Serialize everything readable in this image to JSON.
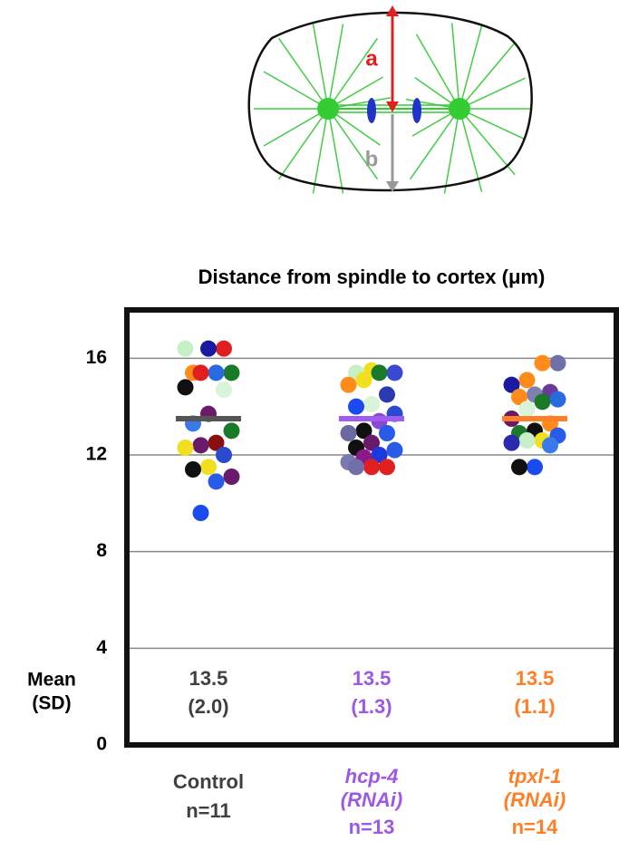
{
  "diagram": {
    "labels": [
      "a",
      "b"
    ]
  },
  "chart_data": {
    "type": "strip",
    "title": "Distance from spindle to cortex (μm)",
    "categories": [
      "Control",
      "hcp-4 (RNAi)",
      "tpxl-1 (RNAi)"
    ],
    "n_labels": [
      "n=11",
      "n=13",
      "n=14"
    ],
    "category_colors": [
      "#404040",
      "#9b59e6",
      "#ff7f27"
    ],
    "ylim": [
      0,
      18
    ],
    "yticks": [
      0,
      4,
      8,
      12,
      16
    ],
    "grid": true,
    "mean_row_label": [
      "Mean",
      "(SD)"
    ],
    "means": [
      13.5,
      13.5,
      13.5
    ],
    "mean_colors": [
      "#555555",
      "#a05cf0",
      "#ff7f27"
    ],
    "sd": [
      2.0,
      1.3,
      1.1
    ],
    "sd_labels": [
      "(2.0)",
      "(1.3)",
      "(1.1)"
    ],
    "groups": [
      {
        "values": [
          16.4,
          16.4,
          16.4,
          15.4,
          15.4,
          15.4,
          15.4,
          14.8,
          14.7,
          13.7,
          13.3,
          13.0,
          12.5,
          12.4,
          12.3,
          12.0,
          11.5,
          11.4,
          11.1,
          10.9,
          9.6
        ],
        "colors": [
          "#c8f0c8",
          "#e02020",
          "#1a1aa0",
          "#ff8c1a",
          "#1a7a2a",
          "#2a6ae0",
          "#e02020",
          "#101010",
          "#d8f4d8",
          "#6a1a6a",
          "#3a7ae8",
          "#1a7a2a",
          "#8a1010",
          "#6a1a6a",
          "#f0e020",
          "#2a4ad0",
          "#f0e020",
          "#101010",
          "#6a1a6a",
          "#2a5ae8",
          "#1a4af0"
        ]
      },
      {
        "values": [
          15.5,
          15.4,
          15.4,
          15.4,
          15.1,
          14.9,
          14.5,
          14.1,
          14.0,
          13.7,
          13.4,
          13.0,
          12.9,
          12.9,
          12.5,
          12.3,
          12.2,
          12.0,
          11.9,
          11.7,
          11.5,
          11.5,
          11.5
        ],
        "colors": [
          "#f0e020",
          "#c8f0c8",
          "#3a4ad0",
          "#1a7a2a",
          "#f0e020",
          "#ff8c1a",
          "#2a3ab0",
          "#d8f4d8",
          "#1a4af0",
          "#2a4ad0",
          "#8a4ad0",
          "#101010",
          "#6a6aa0",
          "#2a5ae8",
          "#6a1a6a",
          "#101010",
          "#2a5ae8",
          "#1a3ae0",
          "#8a1a8a",
          "#7a7ab0",
          "#e02020",
          "#e02020",
          "#7070a8"
        ]
      },
      {
        "values": [
          15.8,
          15.8,
          15.1,
          14.9,
          14.6,
          14.5,
          14.4,
          14.3,
          14.2,
          13.9,
          13.5,
          13.3,
          13.0,
          12.9,
          12.8,
          12.6,
          12.6,
          12.5,
          12.4,
          11.5,
          11.5
        ],
        "colors": [
          "#7070a8",
          "#ff8c1a",
          "#ff8c1a",
          "#1a1aa0",
          "#6a3a9a",
          "#8080b0",
          "#ff8c1a",
          "#2a6ae0",
          "#1a7a2a",
          "#d8f4d8",
          "#6a1a6a",
          "#ff8c1a",
          "#101010",
          "#1a7a2a",
          "#2a5ae8",
          "#f0e020",
          "#c8f0c8",
          "#2a2ab0",
          "#3a7ae8",
          "#1a4af0",
          "#101010"
        ]
      }
    ]
  }
}
